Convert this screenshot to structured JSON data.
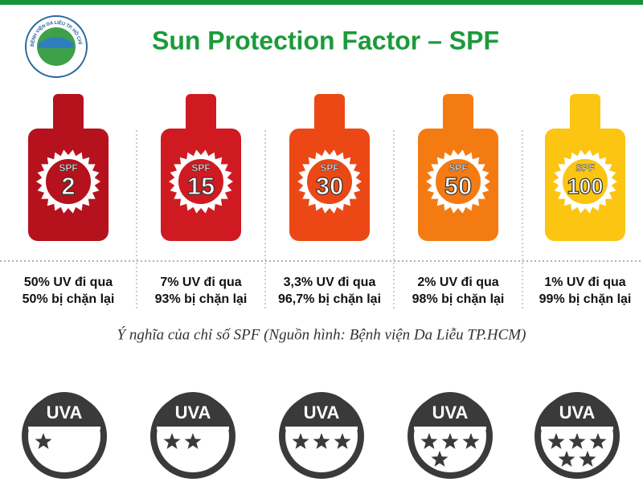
{
  "logo": {
    "text": "BỆNH VIỆN DA LIỄU TP. HỒ CHÍ MINH"
  },
  "header": {
    "title": "Sun Protection Factor – SPF"
  },
  "bottles": [
    {
      "label": "SPF",
      "spf": 2,
      "color": "#b5121d",
      "lines": [
        "50% UV đi qua",
        "50% bị chặn lại"
      ]
    },
    {
      "label": "SPF",
      "spf": 15,
      "color": "#d01a22",
      "lines": [
        "7% UV đi qua",
        "93% bị chặn lại"
      ]
    },
    {
      "label": "SPF",
      "spf": 30,
      "color": "#ec4815",
      "lines": [
        "3,3% UV đi qua",
        "96,7% bị chặn lại"
      ]
    },
    {
      "label": "SPF",
      "spf": 50,
      "color": "#f47b12",
      "lines": [
        "2% UV đi qua",
        "98% bị chặn lại"
      ]
    },
    {
      "label": "SPF",
      "spf": 100,
      "color": "#fbc512",
      "lines": [
        "1% UV đi qua",
        "99% bị chặn lại"
      ]
    }
  ],
  "caption": "Ý nghĩa của chỉ số SPF (Nguồn hình: Bệnh viện Da Liễu TP.HCM)",
  "uva_badges": [
    {
      "label": "UVA",
      "stars": 1
    },
    {
      "label": "UVA",
      "stars": 2
    },
    {
      "label": "UVA",
      "stars": 3
    },
    {
      "label": "UVA",
      "stars": 4
    },
    {
      "label": "UVA",
      "stars": 5
    }
  ]
}
